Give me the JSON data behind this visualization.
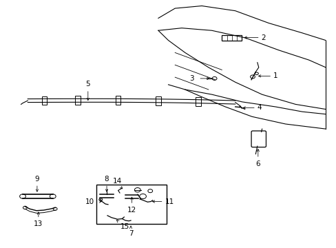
{
  "bg_color": "#ffffff",
  "line_color": "#000000",
  "figure_width": 4.89,
  "figure_height": 3.6,
  "dpi": 100
}
